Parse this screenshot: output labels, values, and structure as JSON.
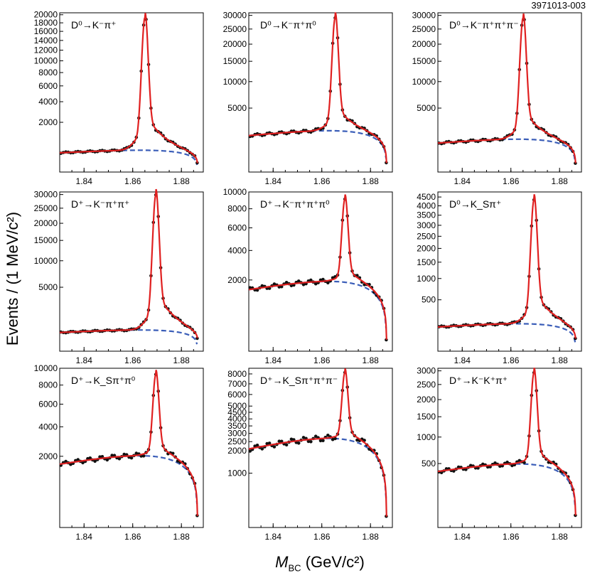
{
  "figure": {
    "id": "3971013-003",
    "ylabel": "Events / (1 MeV/c²)",
    "xlabel_symbol": "M",
    "xlabel_sub": "BC",
    "xlabel_unit": "(GeV/c²)"
  },
  "colors": {
    "fit": "#e02020",
    "background": "#3a5db8",
    "points": "#111111",
    "axis": "#000000"
  },
  "chart_data": [
    {
      "type": "line",
      "title": "D⁰→K⁻π⁺",
      "x_ticks": [
        1.84,
        1.86,
        1.88
      ],
      "y_ticks": [
        2000,
        4000,
        6000,
        8000,
        10000,
        12000,
        14000,
        16000,
        18000,
        20000
      ],
      "xlim": [
        1.83,
        1.889
      ],
      "ylim_sqrt": [
        0,
        20500
      ],
      "peak": {
        "mass": 1.865,
        "height": 20000
      },
      "background_level": 350,
      "series": [
        {
          "name": "",
          "values": "fit"
        },
        {
          "name": "",
          "values": "background"
        }
      ]
    },
    {
      "type": "line",
      "title": "D⁰→K⁻π⁺π⁰",
      "x_ticks": [
        1.84,
        1.86,
        1.88
      ],
      "y_ticks": [
        5000,
        10000,
        15000,
        20000,
        25000,
        30000
      ],
      "xlim": [
        1.83,
        1.889
      ],
      "ylim_sqrt": [
        0,
        31000
      ],
      "peak": {
        "mass": 1.8655,
        "height": 30000
      },
      "background_level": 1900
    },
    {
      "type": "line",
      "title": "D⁰→K⁻π⁺π⁺π⁻",
      "x_ticks": [
        1.84,
        1.86,
        1.88
      ],
      "y_ticks": [
        5000,
        10000,
        15000,
        20000,
        25000,
        30000
      ],
      "xlim": [
        1.83,
        1.889
      ],
      "ylim_sqrt": [
        0,
        31000
      ],
      "peak": {
        "mass": 1.865,
        "height": 30000
      },
      "background_level": 1200
    },
    {
      "type": "line",
      "title": "D⁺→K⁻π⁺π⁺",
      "x_ticks": [
        1.84,
        1.86,
        1.88
      ],
      "y_ticks": [
        5000,
        10000,
        15000,
        20000,
        25000,
        30000
      ],
      "xlim": [
        1.83,
        1.889
      ],
      "ylim_sqrt": [
        0,
        31000
      ],
      "peak": {
        "mass": 1.8695,
        "height": 31000
      },
      "background_level": 500
    },
    {
      "type": "line",
      "title": "D⁺→K⁻π⁺π⁺π⁰",
      "x_ticks": [
        1.84,
        1.86,
        1.88
      ],
      "y_ticks": [
        2000,
        4000,
        6000,
        8000,
        10000
      ],
      "xlim": [
        1.83,
        1.889
      ],
      "ylim_sqrt": [
        0,
        10000
      ],
      "peak": {
        "mass": 1.8695,
        "height": 9300
      },
      "background_level": 1750
    },
    {
      "type": "line",
      "title": "D⁰→K_Sπ⁺",
      "x_ticks": [
        1.84,
        1.86,
        1.88
      ],
      "y_ticks": [
        500,
        1000,
        1500,
        2000,
        2500,
        3000,
        3500,
        4000,
        4500
      ],
      "xlim": [
        1.83,
        1.889
      ],
      "ylim_sqrt": [
        0,
        4800
      ],
      "peak": {
        "mass": 1.8695,
        "height": 4500
      },
      "background_level": 130
    },
    {
      "type": "line",
      "title": "D⁺→K_Sπ⁺π⁰",
      "x_ticks": [
        1.84,
        1.86,
        1.88
      ],
      "y_ticks": [
        2000,
        4000,
        6000,
        8000,
        10000
      ],
      "xlim": [
        1.83,
        1.889
      ],
      "ylim_sqrt": [
        0,
        10000
      ],
      "peak": {
        "mass": 1.8695,
        "height": 9400
      },
      "background_level": 1850
    },
    {
      "type": "line",
      "title": "D⁺→K_Sπ⁺π⁺π⁻",
      "x_ticks": [
        1.84,
        1.86,
        1.88
      ],
      "y_ticks": [
        1000,
        2000,
        2500,
        3000,
        3500,
        4000,
        4500,
        5000,
        6000,
        7000,
        8000
      ],
      "xlim": [
        1.83,
        1.889
      ],
      "ylim_sqrt": [
        0,
        8600
      ],
      "peak": {
        "mass": 1.8695,
        "height": 8200
      },
      "background_level": 2450
    },
    {
      "type": "line",
      "title": "D⁺→K⁻K⁺π⁺",
      "x_ticks": [
        1.84,
        1.86,
        1.88
      ],
      "y_ticks": [
        500,
        1000,
        1500,
        2000,
        2500,
        3000
      ],
      "xlim": [
        1.83,
        1.889
      ],
      "ylim_sqrt": [
        0,
        3100
      ],
      "peak": {
        "mass": 1.8695,
        "height": 3000
      },
      "background_level": 450
    }
  ]
}
